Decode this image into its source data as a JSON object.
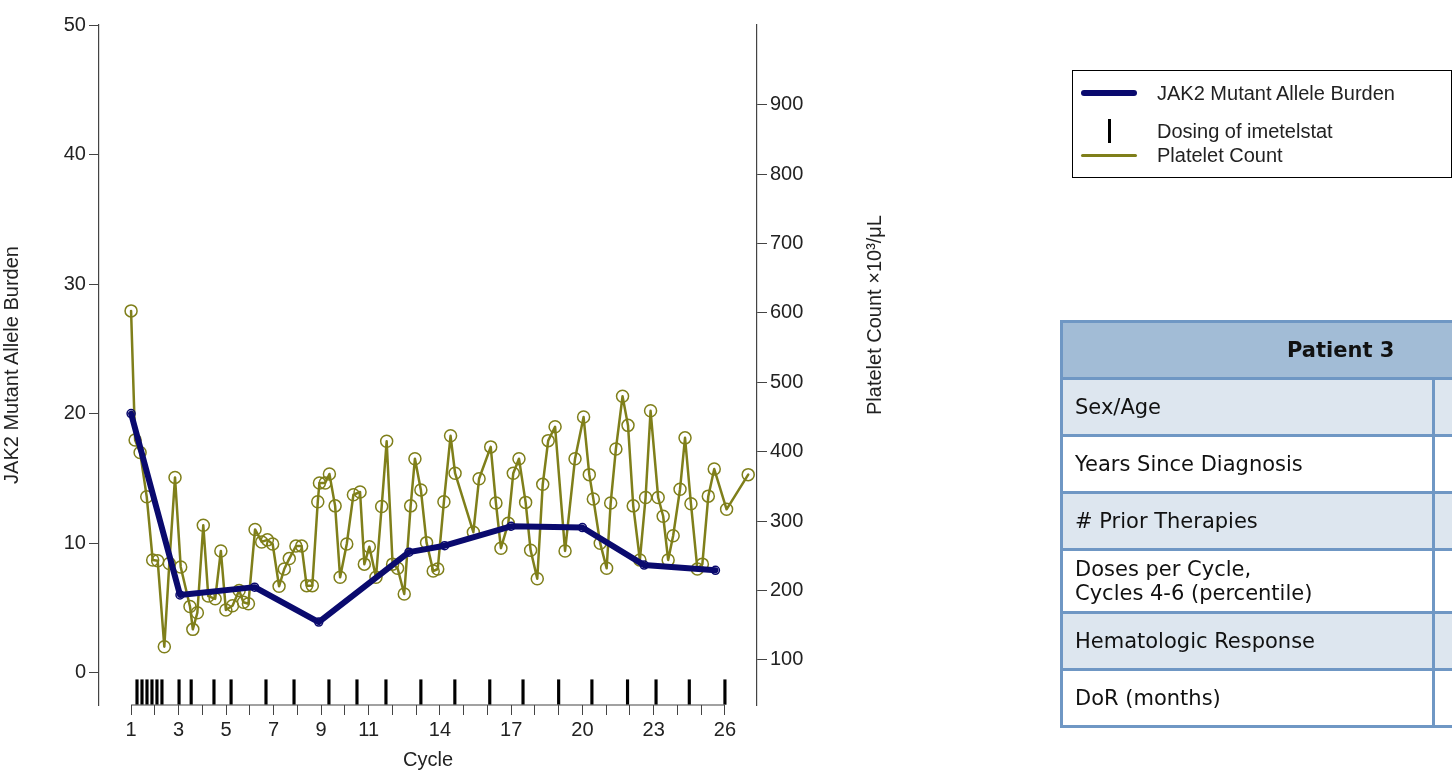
{
  "chart_data": [
    {
      "type": "line",
      "xlabel": "Cycle",
      "ylabel": "JAK2 Mutant Allele Burden",
      "y2label": "Platelet Count ×10³/μL",
      "xlim": [
        -0.35,
        27.35
      ],
      "xticks": [
        1,
        {
          "value": 2,
          "label": null
        },
        3,
        {
          "value": 4,
          "label": null
        },
        5,
        {
          "value": 6,
          "label": null
        },
        7,
        {
          "value": 8,
          "label": null
        },
        9,
        {
          "value": 10,
          "label": null
        },
        11,
        {
          "value": 12,
          "label": null
        },
        {
          "value": 13,
          "label": null
        },
        14,
        {
          "value": 15,
          "label": null
        },
        {
          "value": 16,
          "label": null
        },
        17,
        {
          "value": 18,
          "label": null
        },
        {
          "value": 19,
          "label": null
        },
        20,
        {
          "value": 21,
          "label": null
        },
        {
          "value": 22,
          "label": null
        },
        23,
        {
          "value": 24,
          "label": null
        },
        {
          "value": 25,
          "label": null
        },
        26
      ],
      "ylim": [
        -2.5,
        50
      ],
      "yticks": [
        0,
        10,
        20,
        30,
        40,
        50
      ],
      "y2lim": [
        35,
        1015
      ],
      "y2ticks": [
        100,
        200,
        300,
        400,
        500,
        600,
        700,
        800,
        900
      ],
      "legend": "top right",
      "marker": "circle",
      "series": [
        {
          "name": "JAK2 Mutant Allele Burden",
          "color": "#0a0a6e",
          "x": [
            1,
            3.06,
            6.2,
            8.9,
            12.7,
            14.2,
            17,
            20,
            22.6,
            25.6
          ],
          "values": [
            20,
            6,
            6.6,
            3.9,
            9.3,
            9.8,
            11.3,
            11.2,
            8.3,
            7.9
          ]
        },
        {
          "name": "Dosing of imetelstat",
          "type": "bar",
          "base": [
            -2.45,
            -2.45,
            -2.45,
            -2.45,
            -2.45,
            -2.45,
            -2.45,
            -2.45,
            -2.45,
            -2.45,
            -2.45,
            -2.45,
            -2.45,
            -2.45,
            -2.45,
            -2.45,
            -2.45,
            -2.45,
            -2.45,
            -2.45,
            -2.45,
            -2.45,
            -2.45,
            -2.45,
            -2.45
          ],
          "color": "#000000",
          "x": [
            1.25,
            1.46,
            1.67,
            1.88,
            2.09,
            2.3,
            3.02,
            3.53,
            4.49,
            5.21,
            6.68,
            7.86,
            9.33,
            10.51,
            11.73,
            13.2,
            14.63,
            16.1,
            17.5,
            19.0,
            20.4,
            21.9,
            23.1,
            24.5,
            26.0
          ],
          "values": [
            1.9,
            1.9,
            1.9,
            1.9,
            1.9,
            1.9,
            1.9,
            1.9,
            1.9,
            1.9,
            1.9,
            1.9,
            1.9,
            1.9,
            1.9,
            1.9,
            1.9,
            1.9,
            1.9,
            1.9,
            1.9,
            1.9,
            1.9,
            1.9,
            1.9
          ]
        },
        {
          "name": "Platelet Count",
          "axis": "y2",
          "color": "#7f7f1a",
          "x": [
            1.0,
            1.17,
            1.38,
            1.66,
            1.91,
            2.12,
            2.4,
            2.61,
            2.85,
            3.09,
            3.48,
            3.6,
            3.79,
            4.04,
            4.25,
            4.54,
            4.78,
            4.99,
            5.27,
            5.55,
            5.73,
            5.94,
            6.22,
            6.5,
            6.74,
            6.96,
            7.23,
            7.45,
            7.66,
            7.94,
            8.18,
            8.39,
            8.63,
            8.86,
            8.93,
            9.17,
            9.35,
            9.59,
            9.8,
            10.08,
            10.36,
            10.64,
            10.82,
            11.03,
            11.31,
            11.55,
            11.76,
            12.01,
            12.22,
            12.5,
            12.77,
            12.95,
            13.2,
            13.44,
            13.72,
            13.91,
            14.17,
            14.45,
            14.64,
            15.41,
            15.65,
            16.14,
            16.36,
            16.57,
            16.88,
            17.09,
            17.33,
            17.61,
            17.82,
            18.1,
            18.33,
            18.56,
            18.85,
            19.27,
            19.69,
            20.05,
            20.29,
            20.46,
            20.75,
            21.02,
            21.19,
            21.41,
            21.69,
            21.92,
            22.14,
            22.42,
            22.66,
            22.87,
            23.19,
            23.4,
            23.61,
            23.82,
            24.11,
            24.32,
            24.57,
            24.84,
            25.05,
            25.3,
            25.55,
            26.07,
            26.98
          ],
          "values": [
            603,
            417,
            399,
            335,
            244,
            243,
            119,
            239,
            363,
            234,
            177,
            144,
            168,
            294,
            192,
            188,
            257,
            172,
            178,
            200,
            183,
            181,
            288,
            270,
            273,
            267,
            206,
            231,
            246,
            264,
            264,
            207,
            207,
            328,
            355,
            355,
            368,
            322,
            219,
            267,
            338,
            342,
            238,
            263,
            219,
            321,
            415,
            238,
            232,
            195,
            322,
            390,
            345,
            269,
            228,
            231,
            328,
            423,
            369,
            284,
            361,
            407,
            326,
            261,
            297,
            369,
            390,
            327,
            258,
            217,
            353,
            416,
            436,
            257,
            390,
            450,
            367,
            332,
            268,
            232,
            326,
            404,
            480,
            438,
            322,
            244,
            334,
            459,
            334,
            307,
            244,
            279,
            346,
            420,
            325,
            231,
            238,
            336,
            375,
            317,
            367
          ]
        }
      ]
    },
    {
      "type": "other",
      "title": "Patient 3",
      "annotations": [
        "Sex/Age",
        "Years Since Diagnosis",
        "# Prior Therapies",
        "Doses per Cycle,\nCycles 4-6 (percentile)",
        "Hematologic Response",
        "DoR (months)"
      ]
    }
  ]
}
